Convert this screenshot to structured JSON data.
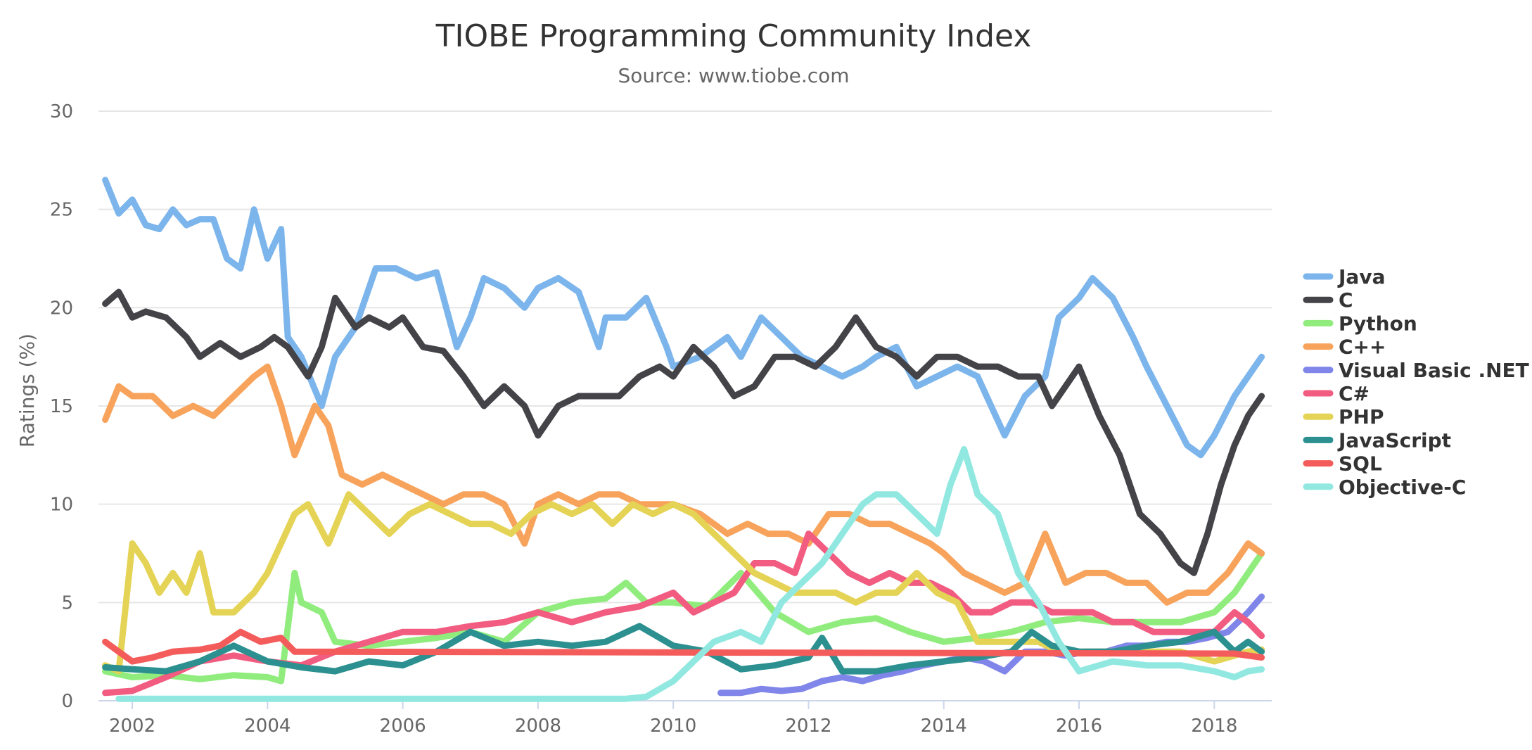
{
  "chart_data": {
    "type": "line",
    "title": "TIOBE Programming Community Index",
    "subtitle": "Source: www.tiobe.com",
    "xlabel": "",
    "ylabel": "Ratings (%)",
    "xlim": [
      2001.5,
      2018.85
    ],
    "ylim": [
      0,
      30
    ],
    "x_ticks": [
      2002,
      2004,
      2006,
      2008,
      2010,
      2012,
      2014,
      2016,
      2018
    ],
    "y_ticks": [
      0,
      5,
      10,
      15,
      20,
      25,
      30
    ],
    "grid": true,
    "legend_position": "right",
    "series": [
      {
        "name": "Java",
        "color": "#7cb5ec",
        "x": [
          2001.6,
          2001.8,
          2002.0,
          2002.2,
          2002.4,
          2002.6,
          2002.8,
          2003.0,
          2003.2,
          2003.4,
          2003.6,
          2003.8,
          2004.0,
          2004.2,
          2004.3,
          2004.5,
          2004.8,
          2005.0,
          2005.3,
          2005.6,
          2005.9,
          2006.2,
          2006.5,
          2006.8,
          2007.0,
          2007.2,
          2007.5,
          2007.8,
          2008.0,
          2008.3,
          2008.6,
          2008.9,
          2009.0,
          2009.3,
          2009.6,
          2009.9,
          2010.0,
          2010.4,
          2010.8,
          2011.0,
          2011.3,
          2011.6,
          2011.9,
          2012.2,
          2012.5,
          2012.8,
          2013.0,
          2013.3,
          2013.6,
          2013.9,
          2014.2,
          2014.5,
          2014.7,
          2014.9,
          2015.2,
          2015.5,
          2015.7,
          2016.0,
          2016.2,
          2016.5,
          2016.8,
          2017.0,
          2017.3,
          2017.6,
          2017.8,
          2018.0,
          2018.3,
          2018.5,
          2018.7
        ],
        "values": [
          26.5,
          24.8,
          25.5,
          24.2,
          24.0,
          25.0,
          24.2,
          24.5,
          24.5,
          22.5,
          22.0,
          25.0,
          22.5,
          24.0,
          18.5,
          17.5,
          15.0,
          17.5,
          19.0,
          22.0,
          22.0,
          21.5,
          21.8,
          18.0,
          19.5,
          21.5,
          21.0,
          20.0,
          21.0,
          21.5,
          20.8,
          18.0,
          19.5,
          19.5,
          20.5,
          18.0,
          17.0,
          17.5,
          18.5,
          17.5,
          19.5,
          18.5,
          17.5,
          17.0,
          16.5,
          17.0,
          17.5,
          18.0,
          16.0,
          16.5,
          17.0,
          16.5,
          15.0,
          13.5,
          15.5,
          16.5,
          19.5,
          20.5,
          21.5,
          20.5,
          18.5,
          17.0,
          15.0,
          13.0,
          12.5,
          13.5,
          15.5,
          16.5,
          17.5
        ]
      },
      {
        "name": "C",
        "color": "#434348",
        "x": [
          2001.6,
          2001.8,
          2002.0,
          2002.2,
          2002.5,
          2002.8,
          2003.0,
          2003.3,
          2003.6,
          2003.9,
          2004.1,
          2004.3,
          2004.6,
          2004.8,
          2005.0,
          2005.3,
          2005.5,
          2005.8,
          2006.0,
          2006.3,
          2006.6,
          2006.9,
          2007.2,
          2007.5,
          2007.8,
          2008.0,
          2008.3,
          2008.6,
          2008.9,
          2009.2,
          2009.5,
          2009.8,
          2010.0,
          2010.3,
          2010.6,
          2010.9,
          2011.2,
          2011.5,
          2011.8,
          2012.1,
          2012.4,
          2012.7,
          2013.0,
          2013.3,
          2013.6,
          2013.9,
          2014.2,
          2014.5,
          2014.8,
          2015.1,
          2015.4,
          2015.6,
          2015.8,
          2016.0,
          2016.3,
          2016.6,
          2016.9,
          2017.2,
          2017.5,
          2017.7,
          2017.9,
          2018.1,
          2018.3,
          2018.5,
          2018.7
        ],
        "values": [
          20.2,
          20.8,
          19.5,
          19.8,
          19.5,
          18.5,
          17.5,
          18.2,
          17.5,
          18.0,
          18.5,
          18.0,
          16.5,
          18.0,
          20.5,
          19.0,
          19.5,
          19.0,
          19.5,
          18.0,
          17.8,
          16.5,
          15.0,
          16.0,
          15.0,
          13.5,
          15.0,
          15.5,
          15.5,
          15.5,
          16.5,
          17.0,
          16.5,
          18.0,
          17.0,
          15.5,
          16.0,
          17.5,
          17.5,
          17.0,
          18.0,
          19.5,
          18.0,
          17.5,
          16.5,
          17.5,
          17.5,
          17.0,
          17.0,
          16.5,
          16.5,
          15.0,
          16.0,
          17.0,
          14.5,
          12.5,
          9.5,
          8.5,
          7.0,
          6.5,
          8.5,
          11.0,
          13.0,
          14.5,
          15.5
        ]
      },
      {
        "name": "Python",
        "color": "#90ed7d",
        "x": [
          2001.6,
          2002.0,
          2002.5,
          2003.0,
          2003.5,
          2004.0,
          2004.2,
          2004.4,
          2004.5,
          2004.8,
          2005.0,
          2005.5,
          2006.0,
          2006.5,
          2007.0,
          2007.5,
          2008.0,
          2008.5,
          2009.0,
          2009.3,
          2009.6,
          2010.0,
          2010.5,
          2011.0,
          2011.5,
          2012.0,
          2012.5,
          2013.0,
          2013.5,
          2014.0,
          2014.5,
          2015.0,
          2015.5,
          2016.0,
          2016.5,
          2017.0,
          2017.5,
          2018.0,
          2018.3,
          2018.5,
          2018.7
        ],
        "values": [
          1.5,
          1.2,
          1.3,
          1.1,
          1.3,
          1.2,
          1.0,
          6.5,
          5.0,
          4.5,
          3.0,
          2.8,
          3.0,
          3.2,
          3.5,
          3.0,
          4.5,
          5.0,
          5.2,
          6.0,
          5.0,
          5.0,
          4.8,
          6.5,
          4.5,
          3.5,
          4.0,
          4.2,
          3.5,
          3.0,
          3.2,
          3.5,
          4.0,
          4.2,
          4.0,
          4.0,
          4.0,
          4.5,
          5.5,
          6.5,
          7.5
        ]
      },
      {
        "name": "C++",
        "color": "#f7a35c",
        "x": [
          2001.6,
          2001.8,
          2002.0,
          2002.3,
          2002.6,
          2002.9,
          2003.2,
          2003.5,
          2003.8,
          2004.0,
          2004.2,
          2004.4,
          2004.7,
          2004.9,
          2005.1,
          2005.4,
          2005.7,
          2006.0,
          2006.3,
          2006.6,
          2006.9,
          2007.2,
          2007.5,
          2007.8,
          2008.0,
          2008.3,
          2008.6,
          2008.9,
          2009.2,
          2009.5,
          2009.8,
          2010.0,
          2010.4,
          2010.8,
          2011.1,
          2011.4,
          2011.7,
          2012.0,
          2012.3,
          2012.6,
          2012.9,
          2013.2,
          2013.5,
          2013.8,
          2014.0,
          2014.3,
          2014.6,
          2014.9,
          2015.2,
          2015.5,
          2015.8,
          2016.1,
          2016.4,
          2016.7,
          2017.0,
          2017.3,
          2017.6,
          2017.9,
          2018.2,
          2018.5,
          2018.7
        ],
        "values": [
          14.3,
          16.0,
          15.5,
          15.5,
          14.5,
          15.0,
          14.5,
          15.5,
          16.5,
          17.0,
          15.0,
          12.5,
          15.0,
          14.0,
          11.5,
          11.0,
          11.5,
          11.0,
          10.5,
          10.0,
          10.5,
          10.5,
          10.0,
          8.0,
          10.0,
          10.5,
          10.0,
          10.5,
          10.5,
          10.0,
          10.0,
          10.0,
          9.5,
          8.5,
          9.0,
          8.5,
          8.5,
          8.0,
          9.5,
          9.5,
          9.0,
          9.0,
          8.5,
          8.0,
          7.5,
          6.5,
          6.0,
          5.5,
          6.0,
          8.5,
          6.0,
          6.5,
          6.5,
          6.0,
          6.0,
          5.0,
          5.5,
          5.5,
          6.5,
          8.0,
          7.5
        ]
      },
      {
        "name": "Visual Basic .NET",
        "color": "#8085e9",
        "x": [
          2010.7,
          2011.0,
          2011.3,
          2011.6,
          2011.9,
          2012.2,
          2012.5,
          2012.8,
          2013.1,
          2013.4,
          2013.7,
          2014.0,
          2014.3,
          2014.6,
          2014.9,
          2015.2,
          2015.5,
          2015.8,
          2016.1,
          2016.4,
          2016.7,
          2017.0,
          2017.3,
          2017.6,
          2017.9,
          2018.2,
          2018.5,
          2018.7
        ],
        "values": [
          0.4,
          0.4,
          0.6,
          0.5,
          0.6,
          1.0,
          1.2,
          1.0,
          1.3,
          1.5,
          1.8,
          2.0,
          2.2,
          2.0,
          1.5,
          2.5,
          2.5,
          2.3,
          2.5,
          2.5,
          2.8,
          2.8,
          3.0,
          3.0,
          3.2,
          3.5,
          4.5,
          5.3
        ]
      },
      {
        "name": "C#",
        "color": "#f15c80",
        "x": [
          2001.6,
          2002.0,
          2002.5,
          2003.0,
          2003.5,
          2004.0,
          2004.5,
          2005.0,
          2005.5,
          2006.0,
          2006.5,
          2007.0,
          2007.5,
          2008.0,
          2008.5,
          2009.0,
          2009.5,
          2010.0,
          2010.3,
          2010.6,
          2010.9,
          2011.2,
          2011.5,
          2011.8,
          2012.0,
          2012.3,
          2012.6,
          2012.9,
          2013.2,
          2013.5,
          2013.8,
          2014.1,
          2014.4,
          2014.7,
          2015.0,
          2015.3,
          2015.6,
          2015.9,
          2016.2,
          2016.5,
          2016.8,
          2017.1,
          2017.4,
          2017.7,
          2018.0,
          2018.3,
          2018.5,
          2018.7
        ],
        "values": [
          0.4,
          0.5,
          1.2,
          2.0,
          2.3,
          2.0,
          1.8,
          2.5,
          3.0,
          3.5,
          3.5,
          3.8,
          4.0,
          4.5,
          4.0,
          4.5,
          4.8,
          5.5,
          4.5,
          5.0,
          5.5,
          7.0,
          7.0,
          6.5,
          8.5,
          7.5,
          6.5,
          6.0,
          6.5,
          6.0,
          6.0,
          5.5,
          4.5,
          4.5,
          5.0,
          5.0,
          4.5,
          4.5,
          4.5,
          4.0,
          4.0,
          3.5,
          3.5,
          3.5,
          3.5,
          4.5,
          4.0,
          3.3
        ]
      },
      {
        "name": "PHP",
        "color": "#e4d354",
        "x": [
          2001.6,
          2001.8,
          2002.0,
          2002.2,
          2002.4,
          2002.6,
          2002.8,
          2003.0,
          2003.2,
          2003.5,
          2003.8,
          2004.0,
          2004.2,
          2004.4,
          2004.6,
          2004.9,
          2005.2,
          2005.5,
          2005.8,
          2006.1,
          2006.4,
          2006.7,
          2007.0,
          2007.3,
          2007.6,
          2007.9,
          2008.2,
          2008.5,
          2008.8,
          2009.1,
          2009.4,
          2009.7,
          2010.0,
          2010.3,
          2010.6,
          2010.9,
          2011.2,
          2011.5,
          2011.8,
          2012.1,
          2012.4,
          2012.7,
          2013.0,
          2013.3,
          2013.6,
          2013.9,
          2014.2,
          2014.5,
          2014.8,
          2015.1,
          2015.4,
          2015.7,
          2016.0,
          2016.5,
          2017.0,
          2017.5,
          2018.0,
          2018.5,
          2018.7
        ],
        "values": [
          1.8,
          1.5,
          8.0,
          7.0,
          5.5,
          6.5,
          5.5,
          7.5,
          4.5,
          4.5,
          5.5,
          6.5,
          8.0,
          9.5,
          10.0,
          8.0,
          10.5,
          9.5,
          8.5,
          9.5,
          10.0,
          9.5,
          9.0,
          9.0,
          8.5,
          9.5,
          10.0,
          9.5,
          10.0,
          9.0,
          10.0,
          9.5,
          10.0,
          9.5,
          8.5,
          7.5,
          6.5,
          6.0,
          5.5,
          5.5,
          5.5,
          5.0,
          5.5,
          5.5,
          6.5,
          5.5,
          5.0,
          3.0,
          3.0,
          3.0,
          3.0,
          2.5,
          2.5,
          2.5,
          2.5,
          2.5,
          2.0,
          2.5,
          2.6
        ]
      },
      {
        "name": "JavaScript",
        "color": "#2b908f",
        "x": [
          2001.6,
          2002.0,
          2002.5,
          2003.0,
          2003.5,
          2004.0,
          2004.5,
          2005.0,
          2005.5,
          2006.0,
          2006.5,
          2007.0,
          2007.5,
          2008.0,
          2008.5,
          2009.0,
          2009.5,
          2010.0,
          2010.5,
          2011.0,
          2011.5,
          2012.0,
          2012.2,
          2012.5,
          2013.0,
          2013.5,
          2014.0,
          2014.5,
          2015.0,
          2015.3,
          2015.6,
          2016.0,
          2016.5,
          2017.0,
          2017.5,
          2018.0,
          2018.3,
          2018.5,
          2018.7
        ],
        "values": [
          1.7,
          1.6,
          1.5,
          2.0,
          2.8,
          2.0,
          1.7,
          1.5,
          2.0,
          1.8,
          2.5,
          3.5,
          2.8,
          3.0,
          2.8,
          3.0,
          3.8,
          2.8,
          2.5,
          1.6,
          1.8,
          2.2,
          3.2,
          1.5,
          1.5,
          1.8,
          2.0,
          2.2,
          2.5,
          3.5,
          2.8,
          2.5,
          2.5,
          2.8,
          3.0,
          3.5,
          2.5,
          3.0,
          2.5
        ]
      },
      {
        "name": "SQL",
        "color": "#f45b5b",
        "x": [
          2001.6,
          2001.8,
          2002.0,
          2002.3,
          2002.6,
          2003.0,
          2003.3,
          2003.6,
          2003.9,
          2004.2,
          2004.4,
          2018.3,
          2018.5,
          2018.7
        ],
        "values": [
          3.0,
          2.5,
          2.0,
          2.2,
          2.5,
          2.6,
          2.8,
          3.5,
          3.0,
          3.2,
          2.5,
          2.4,
          2.3,
          2.2
        ]
      },
      {
        "name": "Objective-C",
        "color": "#91e8e1",
        "x": [
          2001.8,
          2003.0,
          2004.0,
          2005.0,
          2006.0,
          2007.0,
          2008.0,
          2009.0,
          2009.3,
          2009.6,
          2010.0,
          2010.3,
          2010.6,
          2011.0,
          2011.3,
          2011.6,
          2011.9,
          2012.2,
          2012.5,
          2012.8,
          2013.0,
          2013.3,
          2013.6,
          2013.9,
          2014.1,
          2014.3,
          2014.5,
          2014.8,
          2015.1,
          2015.4,
          2015.7,
          2016.0,
          2016.5,
          2017.0,
          2017.5,
          2018.0,
          2018.3,
          2018.5,
          2018.7
        ],
        "values": [
          0.1,
          0.1,
          0.1,
          0.1,
          0.1,
          0.1,
          0.1,
          0.1,
          0.1,
          0.2,
          1.0,
          2.0,
          3.0,
          3.5,
          3.0,
          5.0,
          6.0,
          7.0,
          8.5,
          10.0,
          10.5,
          10.5,
          9.5,
          8.5,
          11.0,
          12.8,
          10.5,
          9.5,
          6.5,
          5.0,
          3.0,
          1.5,
          2.0,
          1.8,
          1.8,
          1.5,
          1.2,
          1.5,
          1.6
        ]
      }
    ]
  }
}
